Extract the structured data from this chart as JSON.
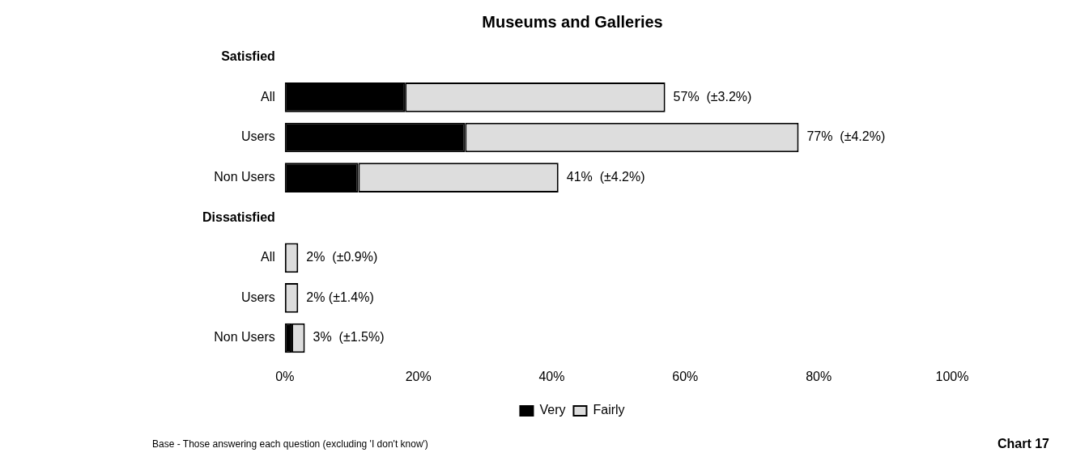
{
  "chart_data": {
    "type": "bar",
    "orientation": "horizontal",
    "stacked": true,
    "title": "Museums and Galleries",
    "categories": [
      "Satisfied",
      "All",
      "Users",
      "Non Users",
      "Dissatisfied",
      "All",
      "Users",
      "Non Users"
    ],
    "series": [
      {
        "name": "Very",
        "color": "#000000",
        "values": [
          null,
          18,
          27,
          11,
          null,
          0,
          0,
          1
        ]
      },
      {
        "name": "Fairly",
        "color": "#dddddd",
        "values": [
          null,
          39,
          50,
          30,
          null,
          2,
          2,
          2
        ]
      }
    ],
    "totals": [
      null,
      "57%  (±3.2%)",
      "77%  (±4.2%)",
      "41%  (±4.2%)",
      null,
      "2%  (±0.9%)",
      "2% (±1.4%)",
      "3%  (±1.5%)"
    ],
    "xlim": [
      0,
      100
    ],
    "xticks": [
      {
        "value": 0,
        "label": "0%"
      },
      {
        "value": 20,
        "label": "20%"
      },
      {
        "value": 40,
        "label": "40%"
      },
      {
        "value": 60,
        "label": "60%"
      },
      {
        "value": 80,
        "label": "80%"
      },
      {
        "value": 100,
        "label": "100%"
      }
    ],
    "grid": false,
    "legend": "bottom",
    "annotations": [
      "Base - Those answering each question (excluding 'I don't know')",
      "Chart 17"
    ]
  }
}
